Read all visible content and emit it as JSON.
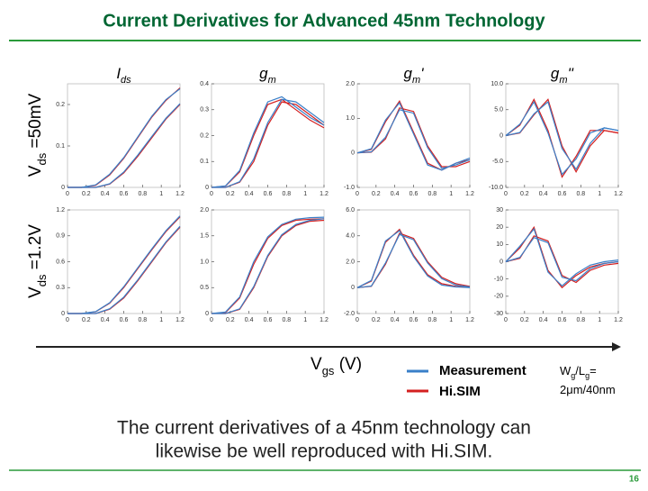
{
  "slide": {
    "title": "Current Derivatives for Advanced 45nm Technology",
    "row_labels": [
      [
        "V",
        "ds",
        " =50mV"
      ],
      [
        "V",
        "ds",
        " =1.2V"
      ]
    ],
    "x_label": [
      "V",
      "gs",
      " (V)"
    ],
    "legend": [
      {
        "name": "Measurement",
        "color": "#3a7fc8"
      },
      {
        "name": "Hi.SIM",
        "color": "#d42020"
      }
    ],
    "annotation": [
      [
        "W",
        "g",
        "/L",
        "g",
        "="
      ],
      [
        "2μm/40nm"
      ]
    ],
    "caption": [
      "The current derivatives of a 45nm technology can",
      "likewise be well reproduced with Hi.SIM."
    ],
    "page_number": "16"
  },
  "chart_data": [
    {
      "type": "line",
      "title_parts": [
        "I",
        "ds"
      ],
      "x": [
        0,
        0.15,
        0.3,
        0.45,
        0.6,
        0.75,
        0.9,
        1.05,
        1.2
      ],
      "xlim": [
        0,
        1.2
      ],
      "xticks": [
        0,
        0.2,
        0.4,
        0.6,
        0.8,
        1,
        1.2
      ],
      "ylim": [
        0,
        0.25
      ],
      "yticks": [
        0,
        0.1,
        0.2
      ],
      "series": [
        {
          "color": "#d42020",
          "values": [
            0,
            0,
            0.005,
            0.03,
            0.07,
            0.12,
            0.17,
            0.21,
            0.24
          ]
        },
        {
          "color": "#d42020",
          "values": [
            0,
            0,
            0,
            0.008,
            0.035,
            0.075,
            0.12,
            0.165,
            0.2
          ]
        },
        {
          "color": "#3a7fc8",
          "values": [
            0,
            0,
            0.006,
            0.032,
            0.072,
            0.122,
            0.172,
            0.212,
            0.238
          ]
        },
        {
          "color": "#3a7fc8",
          "values": [
            0,
            0,
            0,
            0.009,
            0.037,
            0.078,
            0.123,
            0.167,
            0.202
          ]
        }
      ]
    },
    {
      "type": "line",
      "title_parts": [
        "g",
        "m"
      ],
      "x": [
        0,
        0.15,
        0.3,
        0.45,
        0.6,
        0.75,
        0.9,
        1.05,
        1.2
      ],
      "xlim": [
        0,
        1.2
      ],
      "xticks": [
        0,
        0.2,
        0.4,
        0.6,
        0.8,
        1,
        1.2
      ],
      "ylim": [
        0,
        0.4
      ],
      "yticks": [
        0,
        0.1,
        0.2,
        0.3,
        0.4
      ],
      "series": [
        {
          "color": "#d42020",
          "values": [
            0,
            0.005,
            0.06,
            0.2,
            0.32,
            0.34,
            0.3,
            0.26,
            0.23
          ]
        },
        {
          "color": "#d42020",
          "values": [
            0,
            0,
            0.02,
            0.1,
            0.24,
            0.33,
            0.32,
            0.28,
            0.24
          ]
        },
        {
          "color": "#3a7fc8",
          "values": [
            0,
            0.006,
            0.065,
            0.21,
            0.33,
            0.35,
            0.31,
            0.27,
            0.24
          ]
        },
        {
          "color": "#3a7fc8",
          "values": [
            0,
            0,
            0.022,
            0.11,
            0.25,
            0.34,
            0.33,
            0.29,
            0.25
          ]
        }
      ]
    },
    {
      "type": "line",
      "title_parts": [
        "g",
        "m",
        "'"
      ],
      "x": [
        0,
        0.15,
        0.3,
        0.45,
        0.6,
        0.75,
        0.9,
        1.05,
        1.2
      ],
      "xlim": [
        0,
        1.2
      ],
      "xticks": [
        0,
        0.2,
        0.4,
        0.6,
        0.8,
        1,
        1.2
      ],
      "ylim": [
        -1,
        2
      ],
      "yticks": [
        {
          "value": -1,
          "label": "-1.0"
        },
        0,
        {
          "value": 1,
          "label": "1.0"
        },
        {
          "value": 2,
          "label": "2.0"
        }
      ],
      "series": [
        {
          "color": "#d42020",
          "values": [
            0,
            0.1,
            0.9,
            1.5,
            0.6,
            -0.3,
            -0.5,
            -0.3,
            -0.2
          ]
        },
        {
          "color": "#d42020",
          "values": [
            0,
            0.02,
            0.4,
            1.3,
            1.2,
            0.2,
            -0.4,
            -0.4,
            -0.25
          ]
        },
        {
          "color": "#3a7fc8",
          "values": [
            0,
            0.12,
            0.95,
            1.45,
            0.55,
            -0.35,
            -0.5,
            -0.3,
            -0.15
          ]
        },
        {
          "color": "#3a7fc8",
          "values": [
            0,
            0.03,
            0.45,
            1.25,
            1.15,
            0.15,
            -0.45,
            -0.35,
            -0.2
          ]
        }
      ]
    },
    {
      "type": "line",
      "title_parts": [
        "g",
        "m",
        "''"
      ],
      "x": [
        0,
        0.15,
        0.3,
        0.45,
        0.6,
        0.75,
        0.9,
        1.05,
        1.2
      ],
      "xlim": [
        0,
        1.2
      ],
      "xticks": [
        0,
        0.2,
        0.4,
        0.6,
        0.8,
        1,
        1.2
      ],
      "ylim": [
        -10,
        10
      ],
      "yticks": [
        {
          "value": -10,
          "label": "-10.0"
        },
        {
          "value": -5,
          "label": "-5.0"
        },
        0,
        {
          "value": 5,
          "label": "5.0"
        },
        {
          "value": 10,
          "label": "10.0"
        }
      ],
      "series": [
        {
          "color": "#d42020",
          "values": [
            0,
            2,
            7,
            1,
            -8,
            -4,
            1,
            1,
            0.5
          ]
        },
        {
          "color": "#d42020",
          "values": [
            0,
            0.5,
            4,
            7,
            -2,
            -7,
            -2,
            1,
            0.5
          ]
        },
        {
          "color": "#3a7fc8",
          "values": [
            0,
            2.2,
            6.5,
            0.5,
            -7.5,
            -4.5,
            0.5,
            1.5,
            1
          ]
        },
        {
          "color": "#3a7fc8",
          "values": [
            0,
            0.6,
            4.2,
            6.5,
            -2.5,
            -6.5,
            -1.5,
            1.5,
            1
          ]
        }
      ]
    },
    {
      "type": "line",
      "x": [
        0,
        0.15,
        0.3,
        0.45,
        0.6,
        0.75,
        0.9,
        1.05,
        1.2
      ],
      "xlim": [
        0,
        1.2
      ],
      "xticks": [
        0,
        0.2,
        0.4,
        0.6,
        0.8,
        1,
        1.2
      ],
      "ylim": [
        0,
        1.2
      ],
      "yticks": [
        0,
        0.3,
        0.6,
        0.9,
        1.2
      ],
      "series": [
        {
          "color": "#d42020",
          "values": [
            0,
            0,
            0.02,
            0.12,
            0.3,
            0.52,
            0.74,
            0.95,
            1.12
          ]
        },
        {
          "color": "#d42020",
          "values": [
            0,
            0,
            0,
            0.05,
            0.18,
            0.38,
            0.6,
            0.82,
            1.0
          ]
        },
        {
          "color": "#3a7fc8",
          "values": [
            0,
            0,
            0.022,
            0.125,
            0.31,
            0.53,
            0.75,
            0.96,
            1.13
          ]
        },
        {
          "color": "#3a7fc8",
          "values": [
            0,
            0,
            0,
            0.055,
            0.19,
            0.39,
            0.61,
            0.83,
            1.01
          ]
        }
      ]
    },
    {
      "type": "line",
      "x": [
        0,
        0.15,
        0.3,
        0.45,
        0.6,
        0.75,
        0.9,
        1.05,
        1.2
      ],
      "xlim": [
        0,
        1.2
      ],
      "xticks": [
        0,
        0.2,
        0.4,
        0.6,
        0.8,
        1,
        1.2
      ],
      "ylim": [
        0,
        2
      ],
      "yticks": [
        0,
        0.5,
        {
          "value": 1,
          "label": "1.0"
        },
        1.5,
        {
          "value": 2,
          "label": "2.0"
        }
      ],
      "series": [
        {
          "color": "#d42020",
          "values": [
            0,
            0.02,
            0.3,
            0.95,
            1.45,
            1.7,
            1.8,
            1.82,
            1.83
          ]
        },
        {
          "color": "#d42020",
          "values": [
            0,
            0,
            0.08,
            0.5,
            1.1,
            1.5,
            1.7,
            1.78,
            1.8
          ]
        },
        {
          "color": "#3a7fc8",
          "values": [
            0,
            0.03,
            0.32,
            1.0,
            1.48,
            1.72,
            1.82,
            1.85,
            1.86
          ]
        },
        {
          "color": "#3a7fc8",
          "values": [
            0,
            0,
            0.09,
            0.52,
            1.12,
            1.52,
            1.72,
            1.8,
            1.83
          ]
        }
      ]
    },
    {
      "type": "line",
      "x": [
        0,
        0.15,
        0.3,
        0.45,
        0.6,
        0.75,
        0.9,
        1.05,
        1.2
      ],
      "xlim": [
        0,
        1.2
      ],
      "xticks": [
        0,
        0.2,
        0.4,
        0.6,
        0.8,
        1,
        1.2
      ],
      "ylim": [
        -2,
        6
      ],
      "yticks": [
        {
          "value": -2,
          "label": "-2.0"
        },
        0,
        {
          "value": 2,
          "label": "2.0"
        },
        {
          "value": 4,
          "label": "4.0"
        },
        {
          "value": 6,
          "label": "6.0"
        }
      ],
      "series": [
        {
          "color": "#d42020",
          "values": [
            0,
            0.5,
            3.5,
            4.5,
            2.5,
            1,
            0.3,
            0.1,
            0.05
          ]
        },
        {
          "color": "#d42020",
          "values": [
            0,
            0.1,
            1.8,
            4.2,
            3.8,
            2,
            0.8,
            0.3,
            0.1
          ]
        },
        {
          "color": "#3a7fc8",
          "values": [
            0,
            0.55,
            3.6,
            4.4,
            2.4,
            0.9,
            0.2,
            0.05,
            0
          ]
        },
        {
          "color": "#3a7fc8",
          "values": [
            0,
            0.12,
            1.9,
            4.1,
            3.7,
            1.9,
            0.7,
            0.2,
            0.05
          ]
        }
      ]
    },
    {
      "type": "line",
      "x": [
        0,
        0.15,
        0.3,
        0.45,
        0.6,
        0.75,
        0.9,
        1.05,
        1.2
      ],
      "xlim": [
        0,
        1.2
      ],
      "xticks": [
        0,
        0.2,
        0.4,
        0.6,
        0.8,
        1,
        1.2
      ],
      "ylim": [
        -30,
        30
      ],
      "yticks": [
        -30,
        -20,
        -10,
        0,
        10,
        20,
        30
      ],
      "series": [
        {
          "color": "#d42020",
          "values": [
            0,
            8,
            20,
            -5,
            -15,
            -8,
            -3,
            -1,
            0
          ]
        },
        {
          "color": "#d42020",
          "values": [
            0,
            2,
            15,
            12,
            -8,
            -12,
            -5,
            -2,
            -1
          ]
        },
        {
          "color": "#3a7fc8",
          "values": [
            0,
            9,
            19,
            -6,
            -14,
            -7,
            -2,
            0,
            1
          ]
        },
        {
          "color": "#3a7fc8",
          "values": [
            0,
            2.5,
            14,
            11,
            -9,
            -11,
            -4,
            -1,
            0
          ]
        }
      ]
    }
  ]
}
